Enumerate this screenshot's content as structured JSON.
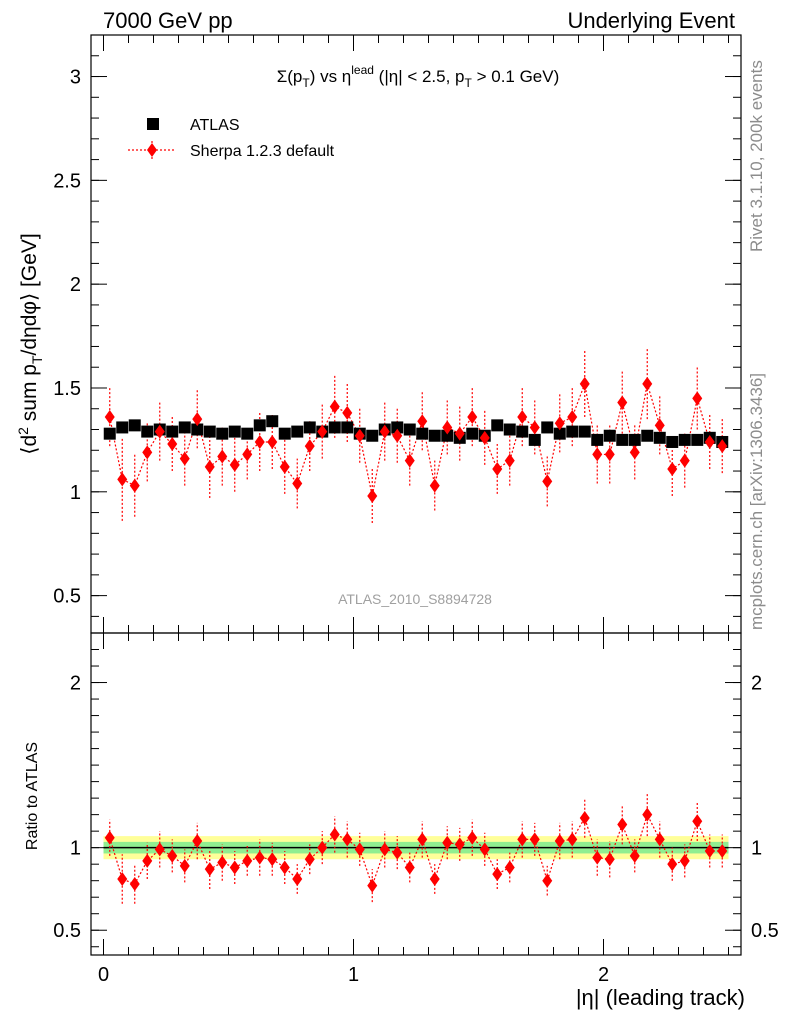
{
  "header": {
    "left": "7000 GeV pp",
    "right": "Underlying Event"
  },
  "side_text": {
    "rivet": "Rivet 3.1.10,  200k events",
    "mcplots": "mcplots.cern.ch [arXiv:1306.3436]"
  },
  "chart_data": [
    {
      "type": "scatter",
      "title_parts": {
        "sigma": "Σ(p",
        "sub_t": "T",
        "mid": ") vs η",
        "sup_lead": "lead",
        "tail": " (|η| < 2.5, p",
        "tail_sub": "T",
        "end": " > 0.1 GeV)"
      },
      "ylabel_parts": {
        "a": "⟨d",
        "sup2": "2",
        "b": " sum p",
        "subT": "T",
        "c": "/dηdφ⟩ [GeV]"
      },
      "watermark": "ATLAS_2010_S8894728",
      "ylim": [
        0.32,
        3.2
      ],
      "xlim": [
        -0.05,
        2.55
      ],
      "yticks": [
        0.5,
        1,
        1.5,
        2,
        2.5,
        3
      ],
      "ytick_labels": [
        "0.5",
        "1",
        "1.5",
        "2",
        "2.5",
        "3"
      ],
      "legend_position": "top-left",
      "series": [
        {
          "name": "ATLAS",
          "color": "#000000",
          "marker": "square",
          "x": [
            0.025,
            0.075,
            0.125,
            0.175,
            0.225,
            0.275,
            0.325,
            0.375,
            0.425,
            0.475,
            0.525,
            0.575,
            0.625,
            0.675,
            0.725,
            0.775,
            0.825,
            0.875,
            0.925,
            0.975,
            1.025,
            1.075,
            1.125,
            1.175,
            1.225,
            1.275,
            1.325,
            1.375,
            1.425,
            1.475,
            1.525,
            1.575,
            1.625,
            1.675,
            1.725,
            1.775,
            1.825,
            1.875,
            1.925,
            1.975,
            2.025,
            2.075,
            2.125,
            2.175,
            2.225,
            2.275,
            2.325,
            2.375,
            2.425,
            2.475
          ],
          "y": [
            1.28,
            1.31,
            1.32,
            1.29,
            1.3,
            1.29,
            1.31,
            1.3,
            1.29,
            1.28,
            1.29,
            1.28,
            1.32,
            1.34,
            1.28,
            1.29,
            1.31,
            1.29,
            1.31,
            1.31,
            1.28,
            1.27,
            1.3,
            1.31,
            1.3,
            1.28,
            1.27,
            1.27,
            1.26,
            1.28,
            1.27,
            1.32,
            1.3,
            1.29,
            1.25,
            1.31,
            1.28,
            1.29,
            1.29,
            1.25,
            1.27,
            1.25,
            1.25,
            1.27,
            1.26,
            1.24,
            1.25,
            1.25,
            1.26,
            1.24
          ]
        },
        {
          "name": "Sherpa 1.2.3 default",
          "color": "#ff0000",
          "marker": "diamond",
          "x": [
            0.025,
            0.075,
            0.125,
            0.175,
            0.225,
            0.275,
            0.325,
            0.375,
            0.425,
            0.475,
            0.525,
            0.575,
            0.625,
            0.675,
            0.725,
            0.775,
            0.825,
            0.875,
            0.925,
            0.975,
            1.025,
            1.075,
            1.125,
            1.175,
            1.225,
            1.275,
            1.325,
            1.375,
            1.425,
            1.475,
            1.525,
            1.575,
            1.625,
            1.675,
            1.725,
            1.775,
            1.825,
            1.875,
            1.925,
            1.975,
            2.025,
            2.075,
            2.125,
            2.175,
            2.225,
            2.275,
            2.325,
            2.375,
            2.425,
            2.475
          ],
          "y": [
            1.36,
            1.06,
            1.03,
            1.19,
            1.29,
            1.23,
            1.16,
            1.35,
            1.12,
            1.17,
            1.13,
            1.18,
            1.24,
            1.24,
            1.12,
            1.04,
            1.22,
            1.29,
            1.41,
            1.38,
            1.27,
            0.98,
            1.29,
            1.27,
            1.15,
            1.34,
            1.03,
            1.31,
            1.28,
            1.36,
            1.26,
            1.11,
            1.15,
            1.36,
            1.31,
            1.05,
            1.33,
            1.36,
            1.52,
            1.18,
            1.18,
            1.43,
            1.19,
            1.52,
            1.32,
            1.11,
            1.15,
            1.45,
            1.24,
            1.22
          ],
          "err": [
            0.14,
            0.2,
            0.15,
            0.14,
            0.14,
            0.13,
            0.13,
            0.14,
            0.15,
            0.14,
            0.13,
            0.12,
            0.14,
            0.13,
            0.13,
            0.12,
            0.12,
            0.13,
            0.15,
            0.14,
            0.13,
            0.13,
            0.14,
            0.13,
            0.12,
            0.14,
            0.12,
            0.13,
            0.13,
            0.14,
            0.13,
            0.12,
            0.12,
            0.14,
            0.13,
            0.12,
            0.14,
            0.14,
            0.16,
            0.14,
            0.14,
            0.15,
            0.13,
            0.17,
            0.14,
            0.13,
            0.13,
            0.15,
            0.13,
            0.13
          ]
        }
      ]
    },
    {
      "type": "scatter",
      "ylabel": "Ratio to ATLAS",
      "xlabel": "|η| (leading track)",
      "ylim": [
        0.35,
        2.3
      ],
      "xlim": [
        -0.05,
        2.55
      ],
      "yticks": [
        0.5,
        1,
        2
      ],
      "ytick_labels": [
        "0.5",
        "1",
        "2"
      ],
      "xticks": [
        0,
        1,
        2
      ],
      "xtick_labels": [
        "0",
        "1",
        "2"
      ],
      "bands": {
        "inner_color": "#90ee90",
        "outer_color": "#ffff99",
        "inner_half_width": 0.035,
        "outer_half_width": 0.07
      },
      "reference_line": 1,
      "series": [
        {
          "name": "Sherpa 1.2.3 default",
          "color": "#ff0000",
          "x": [
            0.025,
            0.075,
            0.125,
            0.175,
            0.225,
            0.275,
            0.325,
            0.375,
            0.425,
            0.475,
            0.525,
            0.575,
            0.625,
            0.675,
            0.725,
            0.775,
            0.825,
            0.875,
            0.925,
            0.975,
            1.025,
            1.075,
            1.125,
            1.175,
            1.225,
            1.275,
            1.325,
            1.375,
            1.425,
            1.475,
            1.525,
            1.575,
            1.625,
            1.675,
            1.725,
            1.775,
            1.825,
            1.875,
            1.925,
            1.975,
            2.025,
            2.075,
            2.125,
            2.175,
            2.225,
            2.275,
            2.325,
            2.375,
            2.425,
            2.475
          ],
          "y": [
            1.06,
            0.81,
            0.78,
            0.92,
            0.99,
            0.95,
            0.89,
            1.04,
            0.87,
            0.91,
            0.88,
            0.92,
            0.94,
            0.93,
            0.88,
            0.81,
            0.93,
            1.0,
            1.08,
            1.05,
            0.99,
            0.77,
            0.99,
            0.97,
            0.88,
            1.05,
            0.81,
            1.03,
            1.02,
            1.06,
            0.99,
            0.84,
            0.88,
            1.05,
            1.05,
            0.8,
            1.04,
            1.05,
            1.18,
            0.94,
            0.93,
            1.14,
            0.95,
            1.2,
            1.05,
            0.9,
            0.92,
            1.16,
            0.98,
            0.98
          ],
          "err": [
            0.11,
            0.15,
            0.12,
            0.11,
            0.11,
            0.1,
            0.1,
            0.11,
            0.12,
            0.11,
            0.1,
            0.09,
            0.11,
            0.1,
            0.1,
            0.09,
            0.09,
            0.1,
            0.11,
            0.11,
            0.1,
            0.1,
            0.11,
            0.1,
            0.09,
            0.11,
            0.09,
            0.1,
            0.1,
            0.11,
            0.1,
            0.09,
            0.09,
            0.11,
            0.1,
            0.09,
            0.11,
            0.11,
            0.12,
            0.11,
            0.11,
            0.12,
            0.1,
            0.13,
            0.11,
            0.1,
            0.1,
            0.12,
            0.1,
            0.1
          ]
        }
      ]
    }
  ]
}
